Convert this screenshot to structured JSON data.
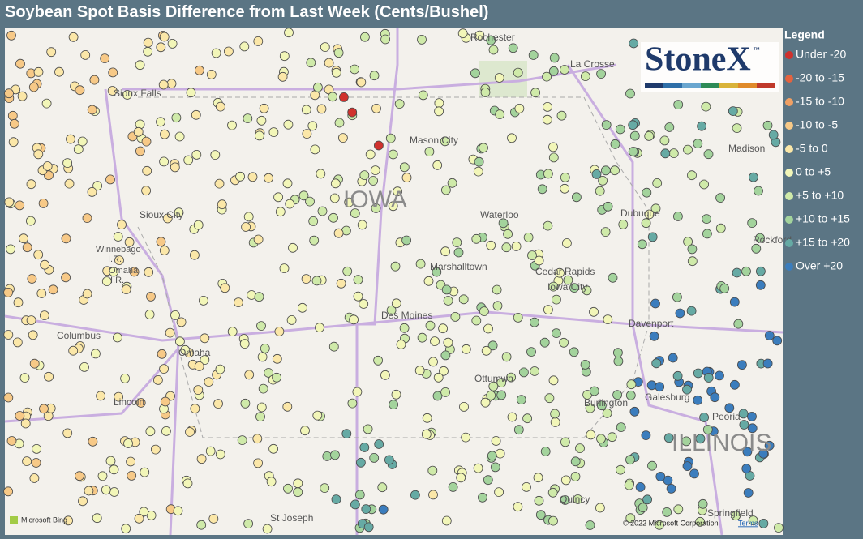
{
  "header": {
    "title": "Soybean Spot Basis Difference from Last Week (Cents/Bushel)"
  },
  "legend": {
    "title": "Legend",
    "items": [
      {
        "label": "Under -20",
        "color": "#d0312d"
      },
      {
        "label": "-20 to -15",
        "color": "#e4633f"
      },
      {
        "label": "-15 to -10",
        "color": "#f0a064"
      },
      {
        "label": "-10 to -5",
        "color": "#f7c987"
      },
      {
        "label": "-5 to 0",
        "color": "#fbe7a8"
      },
      {
        "label": "0 to +5",
        "color": "#f2f6b8"
      },
      {
        "label": "+5 to +10",
        "color": "#cfeaa9"
      },
      {
        "label": "+10 to +15",
        "color": "#a3d39c"
      },
      {
        "label": "+15 to +20",
        "color": "#66aaa4"
      },
      {
        "label": "Over +20",
        "color": "#3b7dbd"
      }
    ]
  },
  "logo": {
    "text": "StoneX",
    "mark": "™"
  },
  "map": {
    "places": [
      "Rochester",
      "La Crosse",
      "Sioux Falls",
      "Mason City",
      "Madison",
      "IOWA",
      "Sioux City",
      "Waterloo",
      "Dubuque",
      "Rockford",
      "Winnebago",
      "I.R.",
      "Omaha",
      "I.R.",
      "Marshalltown",
      "Cedar Rapids",
      "Columbus",
      "Des Moines",
      "Iowa City",
      "Davenport",
      "Omaha",
      "Ottumwa",
      "Lincoln",
      "Burlington",
      "Galesburg",
      "Peoria",
      "ILLINOIS",
      "St Joseph",
      "Quincy",
      "Springfield"
    ],
    "provider": "Microsoft Bing",
    "copyright": "© 2022 Microsoft Corporation",
    "terms": "Terms"
  }
}
